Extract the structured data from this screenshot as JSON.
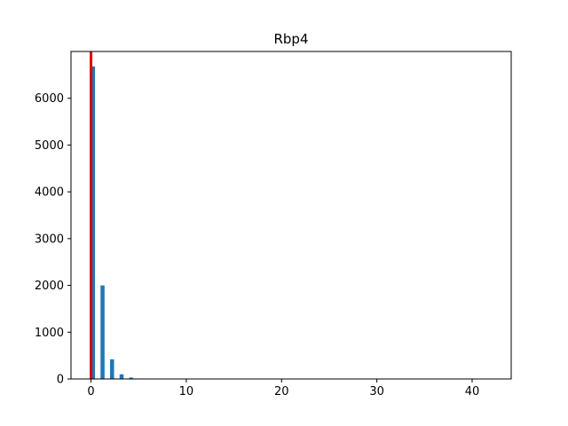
{
  "chart_data": {
    "type": "bar",
    "title": "Rbp4",
    "xlabel": "",
    "ylabel": "",
    "xlim": [
      -2.1,
      44.1
    ],
    "ylim": [
      0,
      7000
    ],
    "x_ticks": [
      0,
      10,
      20,
      30,
      40
    ],
    "y_ticks": [
      0,
      1000,
      2000,
      3000,
      4000,
      5000,
      6000
    ],
    "bar_width": 0.42,
    "bars": [
      {
        "x": 0,
        "value": 6680
      },
      {
        "x": 1,
        "value": 2000
      },
      {
        "x": 2,
        "value": 420
      },
      {
        "x": 3,
        "value": 100
      },
      {
        "x": 4,
        "value": 30
      },
      {
        "x": 5,
        "value": 10
      },
      {
        "x": 6,
        "value": 4
      },
      {
        "x": 7,
        "value": 2
      },
      {
        "x": 8,
        "value": 1
      },
      {
        "x": 42,
        "value": 1
      }
    ],
    "reference_line": {
      "x": 0
    },
    "colors": {
      "bar": "#1f77b4",
      "reference_line": "#e00000",
      "axes": "#000000"
    },
    "grid": false,
    "legend": "none"
  }
}
